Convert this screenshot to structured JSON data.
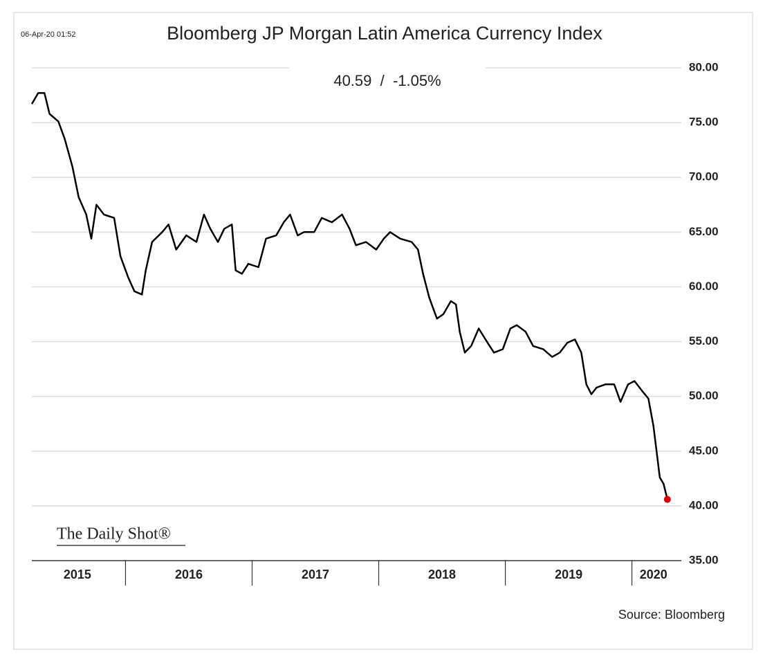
{
  "chart_data": {
    "type": "line",
    "timestamp": "06-Apr-20 01:52",
    "title": "Bloomberg JP Morgan Latin America Currency Index",
    "subtitle": "40.59  /  -1.05%",
    "watermark": "The Daily Shot®",
    "source": "Source: Bloomberg",
    "x": [
      2015.26,
      2015.31,
      2015.36,
      2015.4,
      2015.47,
      2015.52,
      2015.58,
      2015.63,
      2015.69,
      2015.73,
      2015.77,
      2015.83,
      2015.91,
      2015.96,
      2016.02,
      2016.07,
      2016.13,
      2016.16,
      2016.21,
      2016.29,
      2016.34,
      2016.4,
      2016.48,
      2016.56,
      2016.62,
      2016.67,
      2016.73,
      2016.78,
      2016.84,
      2016.87,
      2016.92,
      2016.97,
      2017.05,
      2017.11,
      2017.19,
      2017.25,
      2017.3,
      2017.36,
      2017.41,
      2017.49,
      2017.55,
      2017.63,
      2017.71,
      2017.77,
      2017.82,
      2017.9,
      2017.98,
      2018.04,
      2018.09,
      2018.17,
      2018.26,
      2018.31,
      2018.35,
      2018.4,
      2018.46,
      2018.51,
      2018.57,
      2018.61,
      2018.64,
      2018.68,
      2018.73,
      2018.79,
      2018.86,
      2018.91,
      2018.98,
      2019.04,
      2019.09,
      2019.16,
      2019.22,
      2019.3,
      2019.37,
      2019.43,
      2019.49,
      2019.55,
      2019.6,
      2019.64,
      2019.68,
      2019.72,
      2019.79,
      2019.86,
      2019.91,
      2019.97,
      2020.02,
      2020.08,
      2020.13,
      2020.17,
      2020.2,
      2020.22,
      2020.25,
      2020.28
    ],
    "series": [
      {
        "name": "Bloomberg JP Morgan Latin America Currency Index",
        "color": "#000000",
        "values": [
          76.7,
          77.7,
          77.7,
          75.8,
          75.1,
          73.5,
          71.0,
          68.2,
          66.6,
          64.4,
          67.5,
          66.6,
          66.3,
          62.8,
          60.9,
          59.6,
          59.3,
          61.5,
          64.1,
          65.0,
          65.7,
          63.4,
          64.7,
          64.1,
          66.6,
          65.3,
          64.1,
          65.3,
          65.7,
          61.5,
          61.2,
          62.1,
          61.8,
          64.4,
          64.7,
          65.9,
          66.6,
          64.7,
          65.0,
          65.0,
          66.3,
          65.9,
          66.6,
          65.3,
          63.8,
          64.1,
          63.4,
          64.4,
          65.0,
          64.4,
          64.1,
          63.4,
          61.2,
          59.0,
          57.1,
          57.5,
          58.7,
          58.4,
          55.9,
          54.0,
          54.6,
          56.2,
          54.9,
          54.0,
          54.3,
          56.2,
          56.5,
          55.9,
          54.6,
          54.3,
          53.6,
          54.0,
          54.9,
          55.2,
          54.0,
          51.1,
          50.2,
          50.8,
          51.1,
          51.1,
          49.5,
          51.1,
          51.4,
          50.5,
          49.8,
          47.3,
          44.5,
          42.6,
          42.0,
          40.59
        ]
      }
    ],
    "last_point_color": "#e00000",
    "xlim": [
      2015.26,
      2020.39
    ],
    "xticks": [
      {
        "value": 2015.62,
        "label": "2015"
      },
      {
        "value": 2016.5,
        "label": "2016"
      },
      {
        "value": 2017.5,
        "label": "2017"
      },
      {
        "value": 2018.5,
        "label": "2018"
      },
      {
        "value": 2019.5,
        "label": "2019"
      },
      {
        "value": 2020.17,
        "label": "2020"
      }
    ],
    "year_separators": [
      2016,
      2017,
      2018,
      2019,
      2020
    ],
    "ylim": [
      35,
      80
    ],
    "yticks": [
      {
        "value": 35,
        "label": "35.00"
      },
      {
        "value": 40,
        "label": "40.00"
      },
      {
        "value": 45,
        "label": "45.00"
      },
      {
        "value": 50,
        "label": "50.00"
      },
      {
        "value": 55,
        "label": "55.00"
      },
      {
        "value": 60,
        "label": "60.00"
      },
      {
        "value": 65,
        "label": "65.00"
      },
      {
        "value": 70,
        "label": "70.00"
      },
      {
        "value": 75,
        "label": "75.00"
      },
      {
        "value": 80,
        "label": "80.00"
      }
    ],
    "grid": true
  }
}
